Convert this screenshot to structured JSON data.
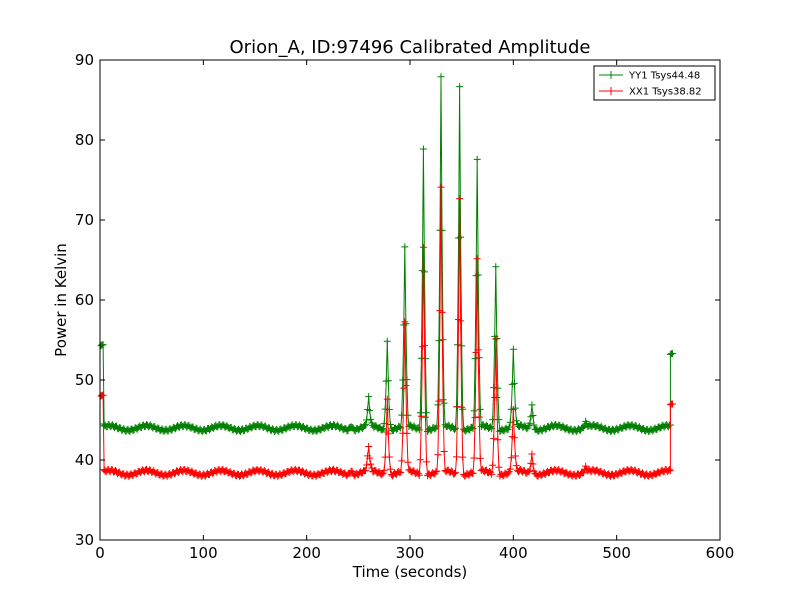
{
  "chart_data": {
    "type": "line",
    "title": "Orion_A, ID:97496 Calibrated Amplitude",
    "xlabel": "Time (seconds)",
    "ylabel": "Power in Kelvin",
    "xlim": [
      0,
      600
    ],
    "ylim": [
      30,
      90
    ],
    "xticks": [
      0,
      100,
      200,
      300,
      400,
      500,
      600
    ],
    "yticks": [
      30,
      40,
      50,
      60,
      70,
      80,
      90
    ],
    "grid": false,
    "legend_position": "top-right",
    "series": [
      {
        "name": "YY1 Tsys44.48",
        "color": "#008000",
        "marker": "+",
        "baseline": 44.0,
        "ripple": 0.3,
        "x": [
          1,
          2,
          3,
          4,
          552,
          553,
          554
        ],
        "y": [
          54.3,
          54.4,
          54.4,
          44.5,
          53.2,
          53.3,
          53.3
        ],
        "peaks": [
          {
            "x": 243,
            "y": 44.6
          },
          {
            "x": 260,
            "y": 47.5
          },
          {
            "x": 278,
            "y": 55.0
          },
          {
            "x": 295,
            "y": 66.5
          },
          {
            "x": 313,
            "y": 79.3
          },
          {
            "x": 330,
            "y": 87.5
          },
          {
            "x": 348,
            "y": 86.8
          },
          {
            "x": 365,
            "y": 77.5
          },
          {
            "x": 383,
            "y": 64.5
          },
          {
            "x": 400,
            "y": 53.5
          },
          {
            "x": 418,
            "y": 47.0
          },
          {
            "x": 470,
            "y": 44.6
          }
        ],
        "x_end": 553
      },
      {
        "name": "XX1 Tsys38.82",
        "color": "#ff0000",
        "marker": "+",
        "baseline": 38.4,
        "ripple": 0.3,
        "x": [
          1,
          2,
          3,
          4,
          552,
          553,
          554
        ],
        "y": [
          48.0,
          48.1,
          48.1,
          38.8,
          46.9,
          47.0,
          47.0
        ],
        "peaks": [
          {
            "x": 243,
            "y": 39.0
          },
          {
            "x": 260,
            "y": 41.4
          },
          {
            "x": 278,
            "y": 47.8
          },
          {
            "x": 295,
            "y": 57.0
          },
          {
            "x": 313,
            "y": 67.0
          },
          {
            "x": 330,
            "y": 73.8
          },
          {
            "x": 348,
            "y": 72.8
          },
          {
            "x": 365,
            "y": 65.0
          },
          {
            "x": 383,
            "y": 55.5
          },
          {
            "x": 400,
            "y": 46.0
          },
          {
            "x": 418,
            "y": 40.8
          },
          {
            "x": 470,
            "y": 39.0
          }
        ],
        "x_end": 553
      }
    ]
  }
}
